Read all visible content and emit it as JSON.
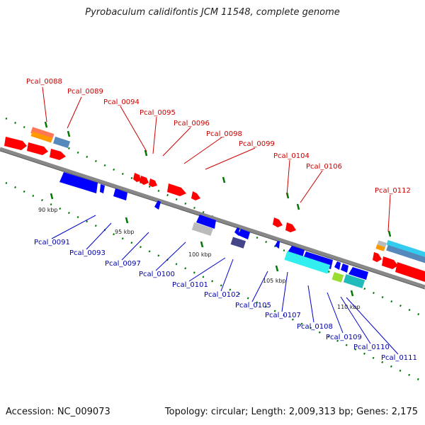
{
  "title": "Pyrobaculum calidifontis JCM 11548, complete genome",
  "footer": {
    "accession": "Accession: NC_009073",
    "stats": "Topology: circular; Length: 2,009,313 bp; Genes: 2,175"
  },
  "scale_labels": [
    "90 kbp",
    "95 kbp",
    "100 kbp",
    "105 kbp",
    "110 kbp"
  ],
  "forward_labels": [
    "Pcal_0088",
    "Pcal_0089",
    "Pcal_0094",
    "Pcal_0095",
    "Pcal_0096",
    "Pcal_0098",
    "Pcal_0099",
    "Pcal_0104",
    "Pcal_0106",
    "Pcal_0112"
  ],
  "reverse_labels": [
    "Pcal_0091",
    "Pcal_0093",
    "Pcal_0097",
    "Pcal_0100",
    "Pcal_0101",
    "Pcal_0102",
    "Pcal_0105",
    "Pcal_0107",
    "Pcal_0108",
    "Pcal_0109",
    "Pcal_0110",
    "Pcal_0111"
  ],
  "colors": {
    "forward": "#ff0000",
    "reverse": "#0000ff",
    "backbone": "#888888",
    "ticks": "#007700",
    "cyan": "#33dddd",
    "gray": "#bbbbbb",
    "navy": "#444488",
    "lime": "#99dd33",
    "teal": "#22bbbb",
    "steel": "#5588bb",
    "orange": "#ff9900",
    "salmon": "#ff7755"
  }
}
